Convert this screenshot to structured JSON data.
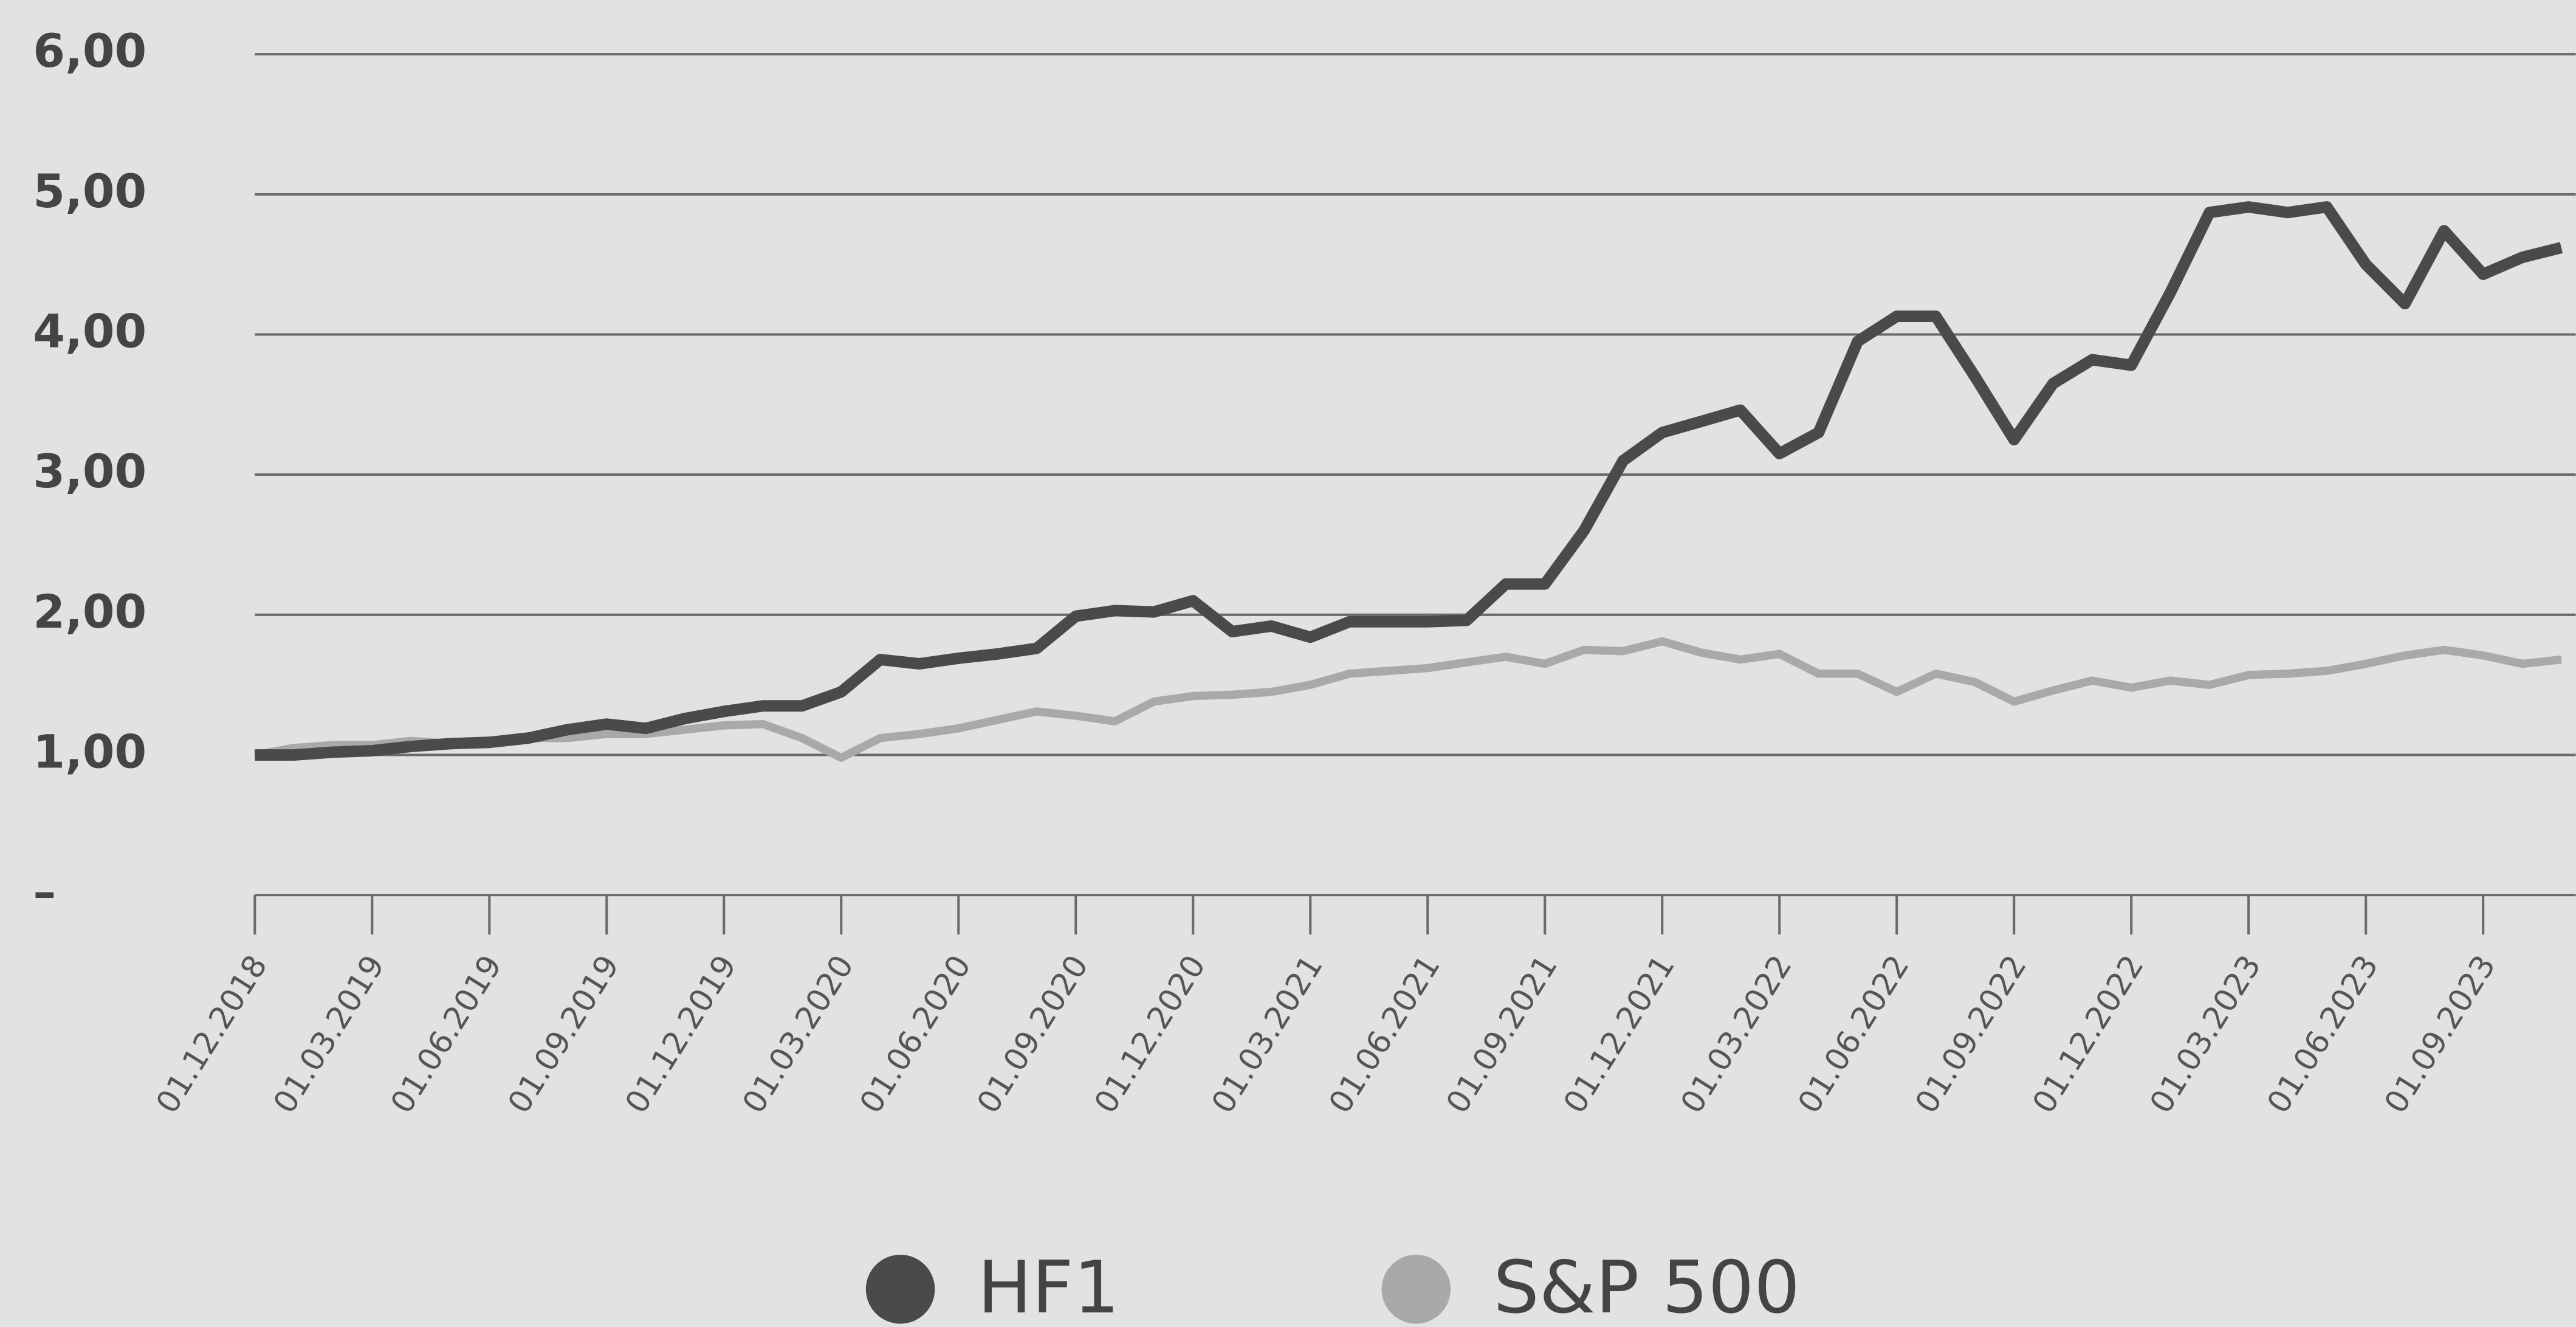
{
  "chart_data": {
    "type": "line",
    "categories": [
      "01.12.2018",
      null,
      null,
      "01.03.2019",
      null,
      null,
      "01.06.2019",
      null,
      null,
      "01.09.2019",
      null,
      null,
      "01.12.2019",
      null,
      null,
      "01.03.2020",
      null,
      null,
      "01.06.2020",
      null,
      null,
      "01.09.2020",
      null,
      null,
      "01.12.2020",
      null,
      null,
      "01.03.2021",
      null,
      null,
      "01.06.2021",
      null,
      null,
      "01.09.2021",
      null,
      null,
      "01.12.2021",
      null,
      null,
      "01.03.2022",
      null,
      null,
      "01.06.2022",
      null,
      null,
      "01.09.2022",
      null,
      null,
      "01.12.2022",
      null,
      null,
      "01.03.2023",
      null,
      null,
      "01.06.2023",
      null,
      null,
      "01.09.2023",
      null,
      null
    ],
    "series": [
      {
        "name": "HF1",
        "color": "#4a4a4a",
        "values": [
          1.0,
          1.0,
          1.02,
          1.03,
          1.06,
          1.08,
          1.09,
          1.12,
          1.18,
          1.22,
          1.19,
          1.26,
          1.31,
          1.35,
          1.35,
          1.45,
          1.68,
          1.65,
          1.69,
          1.72,
          1.76,
          1.99,
          2.03,
          2.02,
          2.1,
          1.88,
          1.92,
          1.84,
          1.95,
          1.95,
          1.95,
          1.96,
          2.22,
          2.22,
          2.6,
          3.1,
          3.3,
          3.38,
          3.46,
          3.15,
          3.3,
          3.95,
          4.13,
          4.13,
          3.7,
          3.25,
          3.65,
          3.82,
          3.78,
          4.3,
          4.87,
          4.91,
          4.87,
          4.91,
          4.5,
          4.22,
          4.74,
          4.43,
          4.55,
          4.62
        ]
      },
      {
        "name": "S&P 500",
        "color": "#a9a9a9",
        "values": [
          1.0,
          1.05,
          1.07,
          1.07,
          1.1,
          1.08,
          1.1,
          1.12,
          1.12,
          1.15,
          1.15,
          1.18,
          1.21,
          1.22,
          1.12,
          0.98,
          1.12,
          1.15,
          1.19,
          1.25,
          1.31,
          1.28,
          1.24,
          1.38,
          1.42,
          1.43,
          1.45,
          1.5,
          1.58,
          1.6,
          1.62,
          1.66,
          1.7,
          1.65,
          1.75,
          1.74,
          1.81,
          1.73,
          1.68,
          1.72,
          1.58,
          1.58,
          1.45,
          1.58,
          1.52,
          1.38,
          1.46,
          1.53,
          1.48,
          1.53,
          1.5,
          1.57,
          1.58,
          1.6,
          1.65,
          1.71,
          1.75,
          1.71,
          1.65,
          1.68
        ]
      }
    ],
    "ylim": [
      0,
      6
    ],
    "yticks": [
      {
        "value": 0,
        "label": "–"
      },
      {
        "value": 1,
        "label": "1,00"
      },
      {
        "value": 2,
        "label": "2,00"
      },
      {
        "value": 3,
        "label": "3,00"
      },
      {
        "value": 4,
        "label": "4,00"
      },
      {
        "value": 5,
        "label": "5,00"
      },
      {
        "value": 6,
        "label": "6,00"
      }
    ],
    "grid": true,
    "legend": "bottom"
  }
}
